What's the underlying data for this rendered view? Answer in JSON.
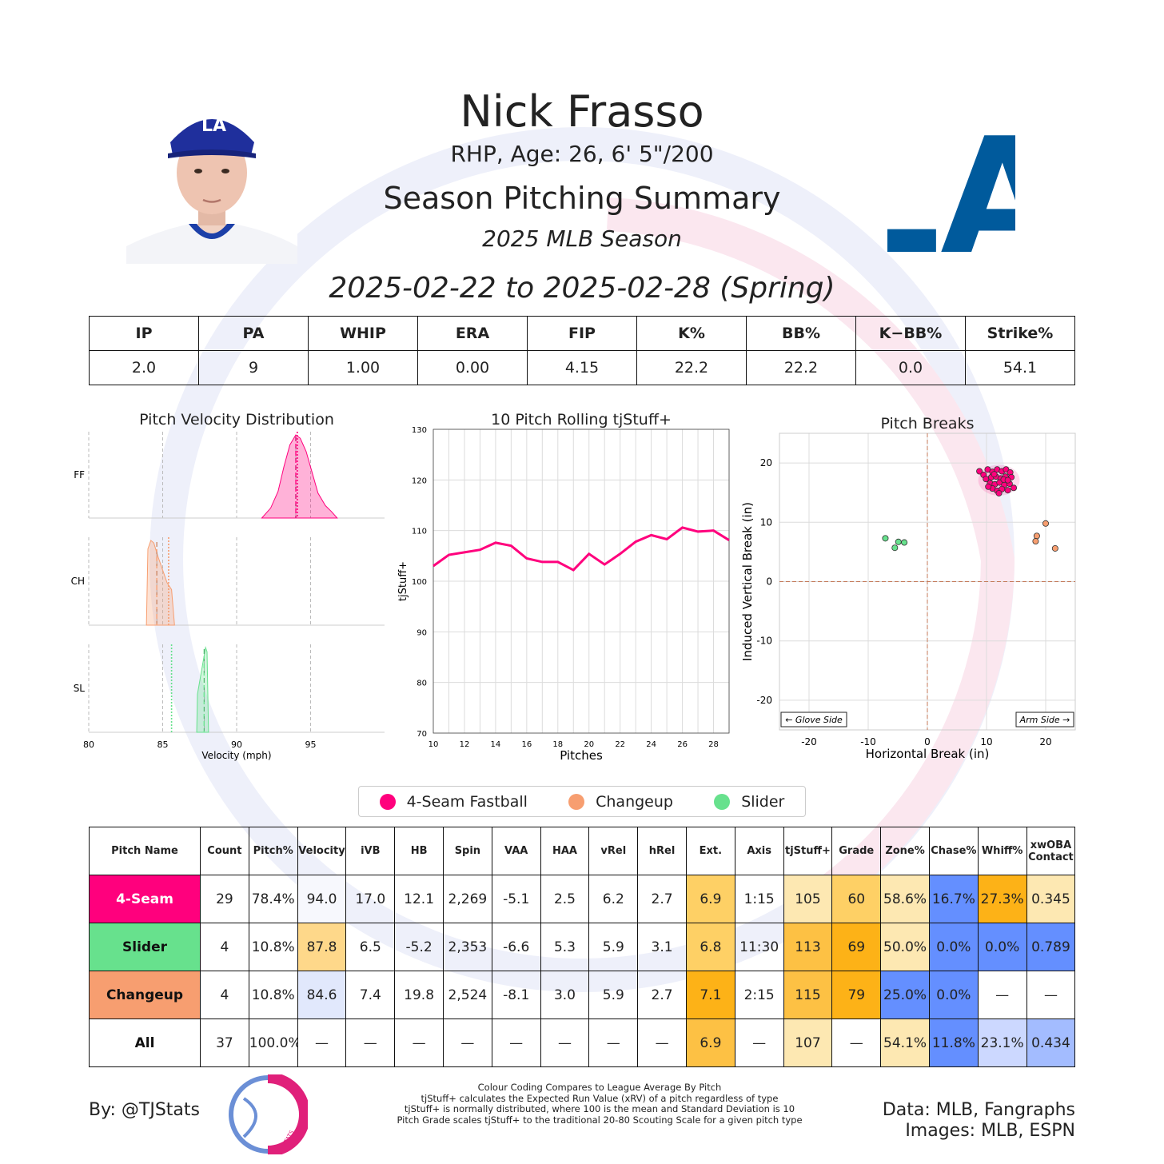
{
  "header": {
    "name": "Nick Frasso",
    "bio": "RHP, Age: 26, 6' 5\"/200",
    "subtitle": "Season Pitching Summary",
    "season": "2025 MLB Season",
    "date_range": "2025-02-22 to 2025-02-28 (Spring)",
    "team_logo_text": "LA"
  },
  "season_stats": {
    "headers": [
      "IP",
      "PA",
      "WHIP",
      "ERA",
      "FIP",
      "K%",
      "BB%",
      "K−BB%",
      "Strike%"
    ],
    "values": [
      "2.0",
      "9",
      "1.00",
      "0.00",
      "4.15",
      "22.2",
      "22.2",
      "0.0",
      "54.1"
    ]
  },
  "colors": {
    "fastball": "#ff007d",
    "changeup": "#f79e70",
    "slider": "#67e18d",
    "dodger_blue": "#005a9c",
    "cell_gold_dark": "#fdb217",
    "cell_gold_mid": "#fed065",
    "cell_gold_light": "#fde8b2",
    "cell_blue_dark": "#648fff",
    "cell_blue_light": "#ccd8ff",
    "cell_blue_faint": "#e1e8fc"
  },
  "chart_data": [
    {
      "type": "area",
      "title": "Pitch Velocity Distribution",
      "xlabel": "Velocity (mph)",
      "xlim": [
        80,
        100
      ],
      "xticks": [
        "80",
        "85",
        "90",
        "95"
      ],
      "series": [
        {
          "name": "FF",
          "color": "#ff007d",
          "x": [
            91.7,
            92.3,
            92.8,
            93.2,
            93.6,
            94.0,
            94.3,
            94.7,
            95.1,
            95.5,
            96.0,
            96.4,
            96.8
          ],
          "y": [
            0,
            0.12,
            0.32,
            0.62,
            0.88,
            1.0,
            0.96,
            0.8,
            0.55,
            0.3,
            0.15,
            0.08,
            0
          ],
          "mean": 94.0,
          "league_avg": 94.1
        },
        {
          "name": "CH",
          "color": "#f79e70",
          "x": [
            83.9,
            84.0,
            84.2,
            84.4,
            84.7,
            85.0,
            85.3,
            85.6,
            85.8
          ],
          "y": [
            0,
            0.9,
            1.0,
            0.97,
            0.8,
            0.65,
            0.5,
            0.42,
            0
          ],
          "mean": 84.6,
          "league_avg": 85.4
        },
        {
          "name": "SL",
          "color": "#67e18d",
          "x": [
            87.3,
            87.35,
            87.5,
            87.7,
            87.9,
            88.0,
            88.1
          ],
          "y": [
            0,
            0.45,
            0.6,
            0.8,
            1.0,
            0.95,
            0
          ],
          "mean": 87.8,
          "league_avg": 85.6
        }
      ]
    },
    {
      "type": "line",
      "title": "10 Pitch Rolling tjStuff+",
      "xlabel": "Pitches",
      "ylabel": "tjStuff+",
      "xlim": [
        10,
        29
      ],
      "ylim": [
        70,
        130
      ],
      "xticks": [
        "10",
        "12",
        "14",
        "16",
        "18",
        "20",
        "22",
        "24",
        "26",
        "28"
      ],
      "yticks": [
        "70",
        "80",
        "90",
        "100",
        "110",
        "120",
        "130"
      ],
      "x": [
        10,
        11,
        12,
        13,
        14,
        15,
        16,
        17,
        18,
        19,
        20,
        21,
        22,
        23,
        24,
        25,
        26,
        27,
        28,
        29
      ],
      "values": [
        103.0,
        105.2,
        105.7,
        106.2,
        107.6,
        107.0,
        104.5,
        103.8,
        103.8,
        102.2,
        105.4,
        103.3,
        105.4,
        107.8,
        109.1,
        108.3,
        110.6,
        109.8,
        110.0,
        108.1
      ],
      "color": "#ff007d"
    },
    {
      "type": "scatter",
      "title": "Pitch Breaks",
      "xlabel": "Horizontal Break (in)",
      "ylabel": "Induced Vertical Break (in)",
      "xlim": [
        -25,
        25
      ],
      "ylim": [
        -25,
        25
      ],
      "xticks": [
        "-20",
        "-10",
        "0",
        "10",
        "20"
      ],
      "yticks": [
        "-20",
        "-10",
        "0",
        "10",
        "20"
      ],
      "annotation_left": "← Glove Side",
      "annotation_right": "Arm Side →",
      "series": [
        {
          "name": "4-Seam Fastball",
          "color": "#ff007d",
          "points": [
            [
              8.8,
              18.6
            ],
            [
              9.5,
              18.0
            ],
            [
              10.2,
              18.9
            ],
            [
              11.0,
              18.5
            ],
            [
              11.8,
              18.9
            ],
            [
              12.6,
              18.6
            ],
            [
              13.3,
              18.9
            ],
            [
              14.0,
              18.4
            ],
            [
              9.9,
              17.3
            ],
            [
              10.8,
              17.6
            ],
            [
              11.6,
              17.7
            ],
            [
              12.4,
              17.4
            ],
            [
              13.2,
              17.7
            ],
            [
              14.2,
              17.6
            ],
            [
              10.6,
              16.6
            ],
            [
              11.4,
              16.4
            ],
            [
              12.2,
              16.7
            ],
            [
              13.0,
              16.3
            ],
            [
              13.9,
              16.5
            ],
            [
              11.0,
              15.7
            ],
            [
              11.8,
              15.3
            ],
            [
              12.6,
              15.6
            ],
            [
              13.6,
              15.4
            ],
            [
              14.6,
              15.8
            ],
            [
              12.1,
              14.9
            ],
            [
              10.3,
              16.0
            ],
            [
              12.9,
              17.2
            ],
            [
              11.3,
              18.1
            ],
            [
              13.6,
              17.1
            ]
          ],
          "ellipse": {
            "cx": 12.1,
            "cy": 17.1,
            "rx": 3.5,
            "ry": 2.6
          }
        },
        {
          "name": "Changeup",
          "color": "#f79e70",
          "points": [
            [
              20.0,
              9.8
            ],
            [
              18.5,
              7.7
            ],
            [
              18.3,
              6.8
            ],
            [
              21.6,
              5.6
            ]
          ]
        },
        {
          "name": "Slider",
          "color": "#67e18d",
          "points": [
            [
              -7.1,
              7.3
            ],
            [
              -5.5,
              5.7
            ],
            [
              -4.9,
              6.7
            ],
            [
              -3.9,
              6.6
            ]
          ]
        }
      ]
    }
  ],
  "legend": [
    {
      "label": "4-Seam Fastball",
      "color": "#ff007d"
    },
    {
      "label": "Changeup",
      "color": "#f79e70"
    },
    {
      "label": "Slider",
      "color": "#67e18d"
    }
  ],
  "pitch_table": {
    "headers": [
      "Pitch Name",
      "Count",
      "Pitch%",
      "Velocity",
      "iVB",
      "HB",
      "Spin",
      "VAA",
      "HAA",
      "vRel",
      "hRel",
      "Ext.",
      "Axis",
      "tjStuff+",
      "Grade",
      "Zone%",
      "Chase%",
      "Whiff%",
      "xwOBA Contact"
    ],
    "rows": [
      {
        "name": "4-Seam",
        "name_bg": "#ff007d",
        "name_fg": "#ffffff",
        "cells": [
          "29",
          "78.4%",
          "94.0",
          "17.0",
          "12.1",
          "2,269",
          "-5.1",
          "2.5",
          "6.2",
          "2.7",
          "6.9",
          "1:15",
          "105",
          "60",
          "58.6%",
          "16.7%",
          "27.3%",
          "0.345"
        ],
        "bgs": [
          "",
          "",
          "#f7f8fd",
          "",
          "",
          "",
          "",
          "",
          "",
          "",
          "#fed065",
          "",
          "#fde8b2",
          "#fed065",
          "#fde8b2",
          "#648fff",
          "#fdb217",
          "#fde8b2"
        ]
      },
      {
        "name": "Slider",
        "name_bg": "#67e18d",
        "name_fg": "#111111",
        "cells": [
          "4",
          "10.8%",
          "87.8",
          "6.5",
          "-5.2",
          "2,353",
          "-6.6",
          "5.3",
          "5.9",
          "3.1",
          "6.8",
          "11:30",
          "113",
          "69",
          "50.0%",
          "0.0%",
          "0.0%",
          "0.789"
        ],
        "bgs": [
          "",
          "",
          "#fed88a",
          "",
          "",
          "",
          "",
          "",
          "",
          "",
          "#fed065",
          "",
          "#fdc144",
          "#fdb217",
          "#fde8b2",
          "#648fff",
          "#648fff",
          "#648fff"
        ]
      },
      {
        "name": "Changeup",
        "name_bg": "#f79e70",
        "name_fg": "#111111",
        "cells": [
          "4",
          "10.8%",
          "84.6",
          "7.4",
          "19.8",
          "2,524",
          "-8.1",
          "3.0",
          "5.9",
          "2.7",
          "7.1",
          "2:15",
          "115",
          "79",
          "25.0%",
          "0.0%",
          "—",
          "—"
        ],
        "bgs": [
          "",
          "",
          "#e1e8fc",
          "",
          "",
          "",
          "",
          "",
          "",
          "",
          "#fdb217",
          "",
          "#fdc144",
          "#fdb217",
          "#648fff",
          "#648fff",
          "",
          ""
        ]
      },
      {
        "name": "All",
        "name_bg": "#ffffff",
        "name_fg": "#111111",
        "cells": [
          "37",
          "100.0%",
          "—",
          "—",
          "—",
          "—",
          "—",
          "—",
          "—",
          "—",
          "6.9",
          "—",
          "107",
          "—",
          "54.1%",
          "11.8%",
          "23.1%",
          "0.434"
        ],
        "bgs": [
          "",
          "",
          "",
          "",
          "",
          "",
          "",
          "",
          "",
          "",
          "#fdc144",
          "",
          "#fde8b2",
          "",
          "#fde8b2",
          "#648fff",
          "#ccd8ff",
          "#a3bcff"
        ]
      }
    ]
  },
  "footer": {
    "by": "By: @TJStats",
    "logo_text": "STATS",
    "notes": [
      "Colour Coding Compares to League Average By Pitch",
      "tjStuff+ calculates the Expected Run Value (xRV) of a pitch regardless of type",
      "tjStuff+ is normally distributed, where 100 is the mean and Standard Deviation is 10",
      "Pitch Grade scales tjStuff+ to the traditional 20-80 Scouting Scale for a given pitch type"
    ],
    "data_source": "Data: MLB, Fangraphs",
    "image_source": "Images: MLB, ESPN"
  }
}
